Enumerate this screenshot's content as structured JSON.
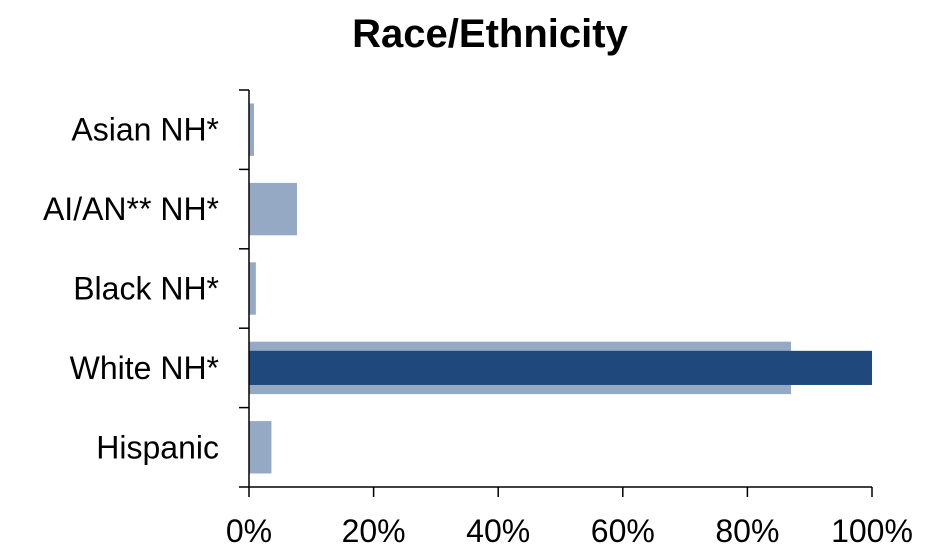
{
  "chart_data": {
    "type": "bar",
    "orientation": "horizontal",
    "title": "Race/Ethnicity",
    "xlabel": "",
    "ylabel": "",
    "categories": [
      "Asian NH*",
      "AI/AN** NH*",
      "Black NH*",
      "White NH*",
      "Hispanic"
    ],
    "series": [
      {
        "values": [
          0.8,
          7.7,
          1.1,
          87.0,
          3.6
        ],
        "color": "#95a9c5"
      },
      {
        "values": [
          0,
          0,
          0,
          100.0,
          0
        ],
        "color": "#1f497d"
      }
    ],
    "xlim": [
      0,
      100
    ],
    "xticks": [
      "0%",
      "20%",
      "40%",
      "60%",
      "80%",
      "100%"
    ],
    "grid": false,
    "legend": "none"
  }
}
